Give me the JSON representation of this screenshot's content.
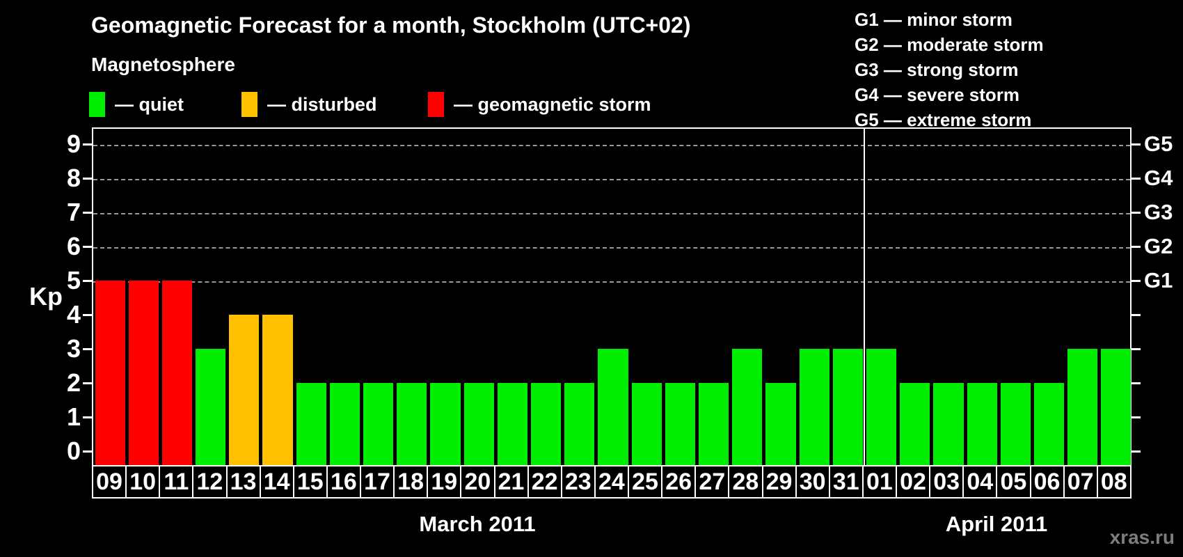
{
  "title": "Geomagnetic Forecast for a month, Stockholm (UTC+02)",
  "legend": {
    "heading": "Magnetosphere",
    "items": [
      {
        "key": "quiet",
        "label": "— quiet",
        "color": "#00ee00"
      },
      {
        "key": "disturbed",
        "label": "— disturbed",
        "color": "#ffc000"
      },
      {
        "key": "storm",
        "label": "— geomagnetic storm",
        "color": "#ff0000"
      }
    ]
  },
  "g_scale_legend": [
    "G1 — minor storm",
    "G2 — moderate storm",
    "G3 — strong storm",
    "G4 — severe storm",
    "G5 — extreme storm"
  ],
  "colors": {
    "quiet": "#00ee00",
    "disturbed": "#ffc000",
    "storm": "#ff0000",
    "grid": "#9a9a9a",
    "axis": "#ffffff",
    "background": "#000000",
    "watermark": "#7d7d7d"
  },
  "chart_data": {
    "type": "bar",
    "title": "Geomagnetic Forecast for a month, Stockholm (UTC+02)",
    "ylabel": "Kp",
    "ylim": [
      0,
      9
    ],
    "y_ticks": [
      0,
      1,
      2,
      3,
      4,
      5,
      6,
      7,
      8,
      9
    ],
    "gridline_levels": [
      5,
      6,
      7,
      8,
      9
    ],
    "grid": "dashed horizontal lines at Kp 5–9",
    "right_axis_labels": [
      {
        "level": 5,
        "label": "G1"
      },
      {
        "level": 6,
        "label": "G2"
      },
      {
        "level": 7,
        "label": "G3"
      },
      {
        "level": 8,
        "label": "G4"
      },
      {
        "level": 9,
        "label": "G5"
      }
    ],
    "categories": [
      "09",
      "10",
      "11",
      "12",
      "13",
      "14",
      "15",
      "16",
      "17",
      "18",
      "19",
      "20",
      "21",
      "22",
      "23",
      "24",
      "25",
      "26",
      "27",
      "28",
      "29",
      "30",
      "31",
      "01",
      "02",
      "03",
      "04",
      "05",
      "06",
      "07",
      "08"
    ],
    "values": [
      5,
      5,
      5,
      3,
      4,
      4,
      2,
      2,
      2,
      2,
      2,
      2,
      2,
      2,
      2,
      3,
      2,
      2,
      2,
      3,
      2,
      3,
      3,
      3,
      2,
      2,
      2,
      2,
      2,
      3,
      3
    ],
    "statuses": [
      "storm",
      "storm",
      "storm",
      "quiet",
      "disturbed",
      "disturbed",
      "quiet",
      "quiet",
      "quiet",
      "quiet",
      "quiet",
      "quiet",
      "quiet",
      "quiet",
      "quiet",
      "quiet",
      "quiet",
      "quiet",
      "quiet",
      "quiet",
      "quiet",
      "quiet",
      "quiet",
      "quiet",
      "quiet",
      "quiet",
      "quiet",
      "quiet",
      "quiet",
      "quiet",
      "quiet"
    ],
    "months": [
      {
        "label": "March 2011",
        "day_count": 23
      },
      {
        "label": "April 2011",
        "day_count": 8
      }
    ],
    "separator_after_index": 22,
    "legend_position": "top"
  },
  "watermark": "xras.ru"
}
